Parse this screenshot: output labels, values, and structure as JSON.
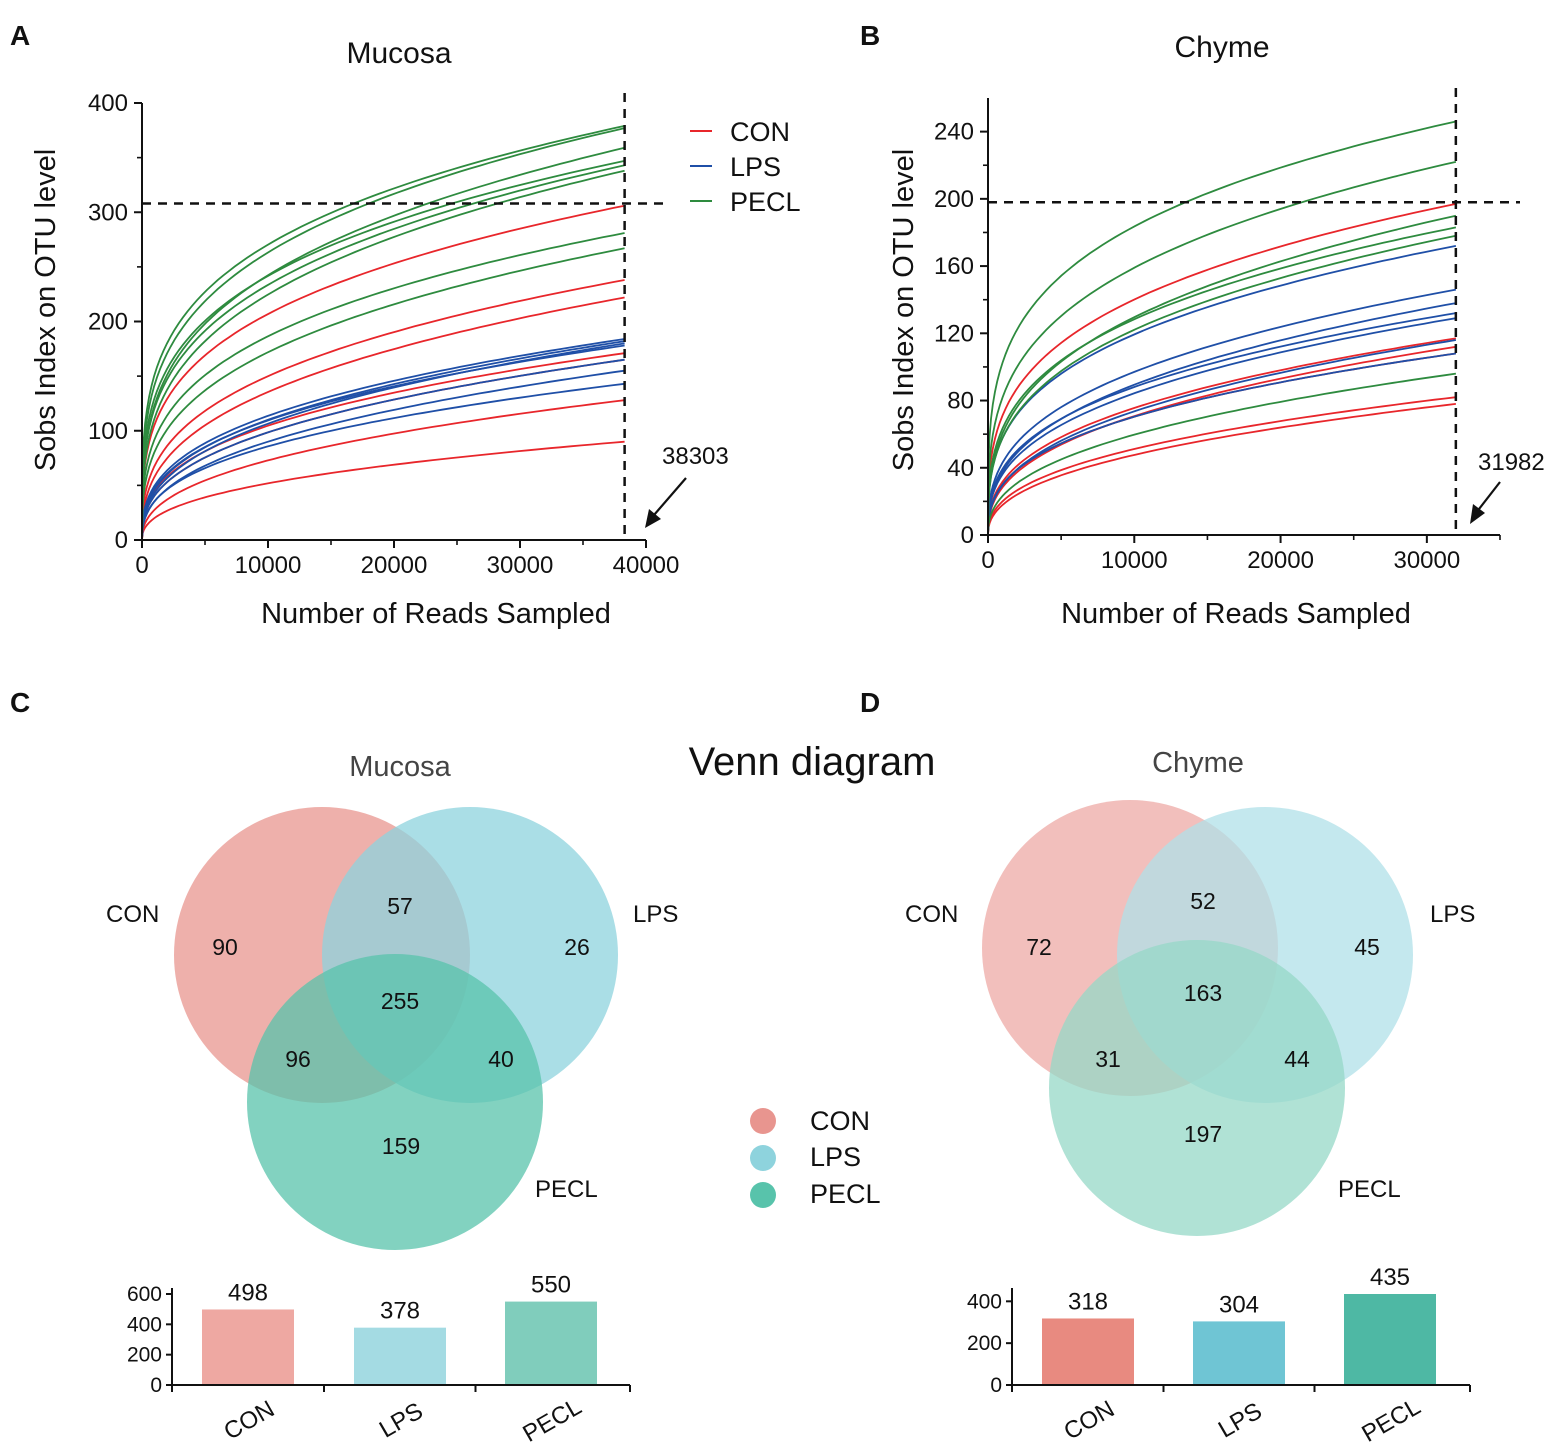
{
  "figure_title": "Venn diagram",
  "legend": {
    "curves": [
      {
        "label": "CON",
        "color": "#e8262b"
      },
      {
        "label": "LPS",
        "color": "#1f4fa7"
      },
      {
        "label": "PECL",
        "color": "#2e8b3f"
      }
    ],
    "venn": [
      {
        "label": "CON",
        "color": "#e8958f"
      },
      {
        "label": "LPS",
        "color": "#8ed3dd"
      },
      {
        "label": "PECL",
        "color": "#58c3ab"
      }
    ]
  },
  "chart_data": [
    {
      "panel": "A",
      "type": "line",
      "title": "Mucosa",
      "xlabel": "Number of Reads Sampled",
      "ylabel": "Sobs Index on OTU level",
      "xlim": [
        0,
        40000
      ],
      "ylim": [
        0,
        400
      ],
      "xticks": [
        "0",
        "10000",
        "20000",
        "30000",
        "40000"
      ],
      "yticks": [
        "0",
        "100",
        "200",
        "300",
        "400"
      ],
      "xtick_values": [
        0,
        10000,
        20000,
        30000,
        40000
      ],
      "ytick_values": [
        0,
        100,
        200,
        300,
        400
      ],
      "x_max_reads": 38303,
      "vline_x": 38303,
      "hline_y": 308,
      "annotation": "38303",
      "series": [
        {
          "name": "CON",
          "color": "#e8262b",
          "final_values": [
            306,
            238,
            222,
            171,
            165,
            128,
            90
          ]
        },
        {
          "name": "LPS",
          "color": "#1f4fa7",
          "final_values": [
            184,
            182,
            180,
            178,
            165,
            155,
            143
          ]
        },
        {
          "name": "PECL",
          "color": "#2e8b3f",
          "final_values": [
            379,
            377,
            359,
            347,
            343,
            338,
            281,
            267
          ]
        }
      ]
    },
    {
      "panel": "B",
      "type": "line",
      "title": "Chyme",
      "xlabel": "Number of Reads Sampled",
      "ylabel": "Sobs Index on OTU level",
      "xlim": [
        0,
        35000
      ],
      "ylim": [
        0,
        260
      ],
      "xticks": [
        "0",
        "10000",
        "20000",
        "30000"
      ],
      "yticks": [
        "0",
        "40",
        "80",
        "120",
        "160",
        "200",
        "240"
      ],
      "xtick_values": [
        0,
        10000,
        20000,
        30000
      ],
      "ytick_values": [
        0,
        40,
        80,
        120,
        160,
        200,
        240
      ],
      "x_max_reads": 31982,
      "vline_x": 31982,
      "hline_y": 198,
      "annotation": "31982",
      "series": [
        {
          "name": "CON",
          "color": "#e8262b",
          "final_values": [
            197,
            117,
            112,
            108,
            82,
            78
          ]
        },
        {
          "name": "LPS",
          "color": "#1f4fa7",
          "final_values": [
            172,
            146,
            138,
            132,
            129,
            116,
            108
          ]
        },
        {
          "name": "PECL",
          "color": "#2e8b3f",
          "final_values": [
            246,
            222,
            190,
            183,
            178,
            96
          ]
        }
      ]
    },
    {
      "panel": "C",
      "type": "venn",
      "title": "Mucosa",
      "sets": [
        "CON",
        "LPS",
        "PECL"
      ],
      "regions": {
        "con_only": 90,
        "lps_only": 26,
        "pecl_only": 159,
        "con_lps": 57,
        "con_pecl": 96,
        "lps_pecl": 40,
        "all": 255
      },
      "set_colors": [
        "#e8958f",
        "#8ed3dd",
        "#58c3ab"
      ],
      "bar": {
        "type": "bar",
        "categories": [
          "CON",
          "LPS",
          "PECL"
        ],
        "values": [
          498,
          378,
          550
        ],
        "labels": [
          "498",
          "378",
          "550"
        ],
        "colors": [
          "#eea8a2",
          "#a4dbe3",
          "#80cdbc"
        ],
        "yticks": [
          "0",
          "200",
          "400",
          "600"
        ],
        "ytick_values": [
          0,
          200,
          400,
          600
        ],
        "ylim": [
          0,
          600
        ]
      }
    },
    {
      "panel": "D",
      "type": "venn",
      "title": "Chyme",
      "sets": [
        "CON",
        "LPS",
        "PECL"
      ],
      "regions": {
        "con_only": 72,
        "lps_only": 45,
        "pecl_only": 197,
        "con_lps": 52,
        "con_pecl": 31,
        "lps_pecl": 44,
        "all": 163
      },
      "set_colors": [
        "#eeaaa6",
        "#b0e0e8",
        "#95d8c7"
      ],
      "bar": {
        "type": "bar",
        "categories": [
          "CON",
          "LPS",
          "PECL"
        ],
        "values": [
          318,
          304,
          435
        ],
        "labels": [
          "318",
          "304",
          "435"
        ],
        "colors": [
          "#e88a80",
          "#6fc5d4",
          "#4eb8a4"
        ],
        "yticks": [
          "0",
          "200",
          "400"
        ],
        "ytick_values": [
          0,
          200,
          400
        ],
        "ylim": [
          0,
          435
        ]
      }
    }
  ]
}
